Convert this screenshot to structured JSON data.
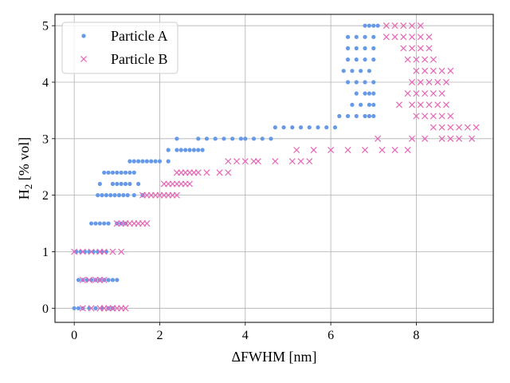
{
  "chart_data": {
    "type": "scatter",
    "xlabel": "ΔFWHM [nm]",
    "ylabel": {
      "main": "H",
      "sub": "2",
      "rest": " [% vol]"
    },
    "xlim": [
      -0.45,
      9.8
    ],
    "ylim": [
      -0.25,
      5.2
    ],
    "xticks": [
      0,
      2,
      4,
      6,
      8
    ],
    "yticks": [
      0,
      1,
      2,
      3,
      4,
      5
    ],
    "grid": true,
    "legend_position": "upper-left",
    "series": [
      {
        "name": "Particle A",
        "marker": "dot",
        "color": "#6699e8",
        "points": [
          [
            0.0,
            0
          ],
          [
            0.1,
            0
          ],
          [
            0.2,
            0
          ],
          [
            0.35,
            0
          ],
          [
            0.5,
            0
          ],
          [
            0.65,
            0
          ],
          [
            0.8,
            0
          ],
          [
            0.9,
            0
          ],
          [
            0.1,
            0.5
          ],
          [
            0.2,
            0.5
          ],
          [
            0.3,
            0.5
          ],
          [
            0.4,
            0.5
          ],
          [
            0.5,
            0.5
          ],
          [
            0.6,
            0.5
          ],
          [
            0.7,
            0.5
          ],
          [
            0.8,
            0.5
          ],
          [
            0.9,
            0.5
          ],
          [
            1.0,
            0.5
          ],
          [
            0.05,
            1
          ],
          [
            0.15,
            1
          ],
          [
            0.25,
            1
          ],
          [
            0.35,
            1
          ],
          [
            0.45,
            1
          ],
          [
            0.55,
            1
          ],
          [
            0.65,
            1
          ],
          [
            0.75,
            1
          ],
          [
            0.4,
            1.5
          ],
          [
            0.5,
            1.5
          ],
          [
            0.6,
            1.5
          ],
          [
            0.7,
            1.5
          ],
          [
            0.8,
            1.5
          ],
          [
            1.0,
            1.5
          ],
          [
            1.1,
            1.5
          ],
          [
            1.2,
            1.5
          ],
          [
            0.55,
            2
          ],
          [
            0.65,
            2
          ],
          [
            0.75,
            2
          ],
          [
            0.85,
            2
          ],
          [
            0.95,
            2
          ],
          [
            1.05,
            2
          ],
          [
            1.15,
            2
          ],
          [
            1.25,
            2
          ],
          [
            1.4,
            2
          ],
          [
            1.6,
            2
          ],
          [
            0.6,
            2.2
          ],
          [
            0.9,
            2.2
          ],
          [
            1.0,
            2.2
          ],
          [
            1.1,
            2.2
          ],
          [
            1.2,
            2.2
          ],
          [
            1.3,
            2.2
          ],
          [
            1.5,
            2.2
          ],
          [
            0.7,
            2.4
          ],
          [
            0.8,
            2.4
          ],
          [
            0.9,
            2.4
          ],
          [
            1.0,
            2.4
          ],
          [
            1.1,
            2.4
          ],
          [
            1.2,
            2.4
          ],
          [
            1.3,
            2.4
          ],
          [
            1.4,
            2.4
          ],
          [
            1.3,
            2.6
          ],
          [
            1.4,
            2.6
          ],
          [
            1.5,
            2.6
          ],
          [
            1.6,
            2.6
          ],
          [
            1.7,
            2.6
          ],
          [
            1.8,
            2.6
          ],
          [
            1.9,
            2.6
          ],
          [
            2.0,
            2.6
          ],
          [
            2.2,
            2.6
          ],
          [
            2.2,
            2.8
          ],
          [
            2.4,
            2.8
          ],
          [
            2.5,
            2.8
          ],
          [
            2.6,
            2.8
          ],
          [
            2.7,
            2.8
          ],
          [
            2.8,
            2.8
          ],
          [
            2.9,
            2.8
          ],
          [
            3.0,
            2.8
          ],
          [
            2.4,
            3
          ],
          [
            2.9,
            3
          ],
          [
            3.1,
            3
          ],
          [
            3.3,
            3
          ],
          [
            3.5,
            3
          ],
          [
            3.7,
            3
          ],
          [
            3.9,
            3
          ],
          [
            4.0,
            3
          ],
          [
            4.2,
            3
          ],
          [
            4.4,
            3
          ],
          [
            4.6,
            3
          ],
          [
            4.7,
            3.2
          ],
          [
            4.9,
            3.2
          ],
          [
            5.1,
            3.2
          ],
          [
            5.3,
            3.2
          ],
          [
            5.5,
            3.2
          ],
          [
            5.7,
            3.2
          ],
          [
            5.9,
            3.2
          ],
          [
            6.1,
            3.2
          ],
          [
            6.2,
            3.4
          ],
          [
            6.4,
            3.4
          ],
          [
            6.6,
            3.4
          ],
          [
            6.8,
            3.4
          ],
          [
            6.9,
            3.4
          ],
          [
            7.0,
            3.4
          ],
          [
            6.5,
            3.6
          ],
          [
            6.7,
            3.6
          ],
          [
            6.9,
            3.6
          ],
          [
            7.0,
            3.6
          ],
          [
            6.6,
            3.8
          ],
          [
            6.8,
            3.8
          ],
          [
            6.9,
            3.8
          ],
          [
            7.0,
            3.8
          ],
          [
            6.4,
            4.0
          ],
          [
            6.6,
            4.0
          ],
          [
            6.8,
            4.0
          ],
          [
            7.0,
            4.0
          ],
          [
            6.3,
            4.2
          ],
          [
            6.5,
            4.2
          ],
          [
            6.7,
            4.2
          ],
          [
            6.9,
            4.2
          ],
          [
            6.4,
            4.4
          ],
          [
            6.6,
            4.4
          ],
          [
            6.8,
            4.4
          ],
          [
            7.0,
            4.4
          ],
          [
            6.4,
            4.6
          ],
          [
            6.6,
            4.6
          ],
          [
            6.8,
            4.6
          ],
          [
            7.0,
            4.6
          ],
          [
            6.4,
            4.8
          ],
          [
            6.6,
            4.8
          ],
          [
            6.8,
            4.8
          ],
          [
            7.0,
            4.8
          ],
          [
            6.8,
            5.0
          ],
          [
            6.9,
            5.0
          ],
          [
            7.0,
            5.0
          ],
          [
            7.1,
            5.0
          ]
        ]
      },
      {
        "name": "Particle B",
        "marker": "x",
        "color": "#e466b5",
        "points": [
          [
            0.2,
            0
          ],
          [
            0.4,
            0
          ],
          [
            0.6,
            0
          ],
          [
            0.7,
            0
          ],
          [
            0.8,
            0
          ],
          [
            0.9,
            0
          ],
          [
            1.0,
            0
          ],
          [
            1.1,
            0
          ],
          [
            1.2,
            0
          ],
          [
            0.2,
            0.5
          ],
          [
            0.35,
            0.5
          ],
          [
            0.5,
            0.5
          ],
          [
            0.6,
            0.5
          ],
          [
            0.7,
            0.5
          ],
          [
            0.0,
            1
          ],
          [
            0.2,
            1
          ],
          [
            0.4,
            1
          ],
          [
            0.6,
            1
          ],
          [
            0.7,
            1
          ],
          [
            0.9,
            1
          ],
          [
            1.1,
            1
          ],
          [
            1.0,
            1.5
          ],
          [
            1.1,
            1.5
          ],
          [
            1.2,
            1.5
          ],
          [
            1.3,
            1.5
          ],
          [
            1.4,
            1.5
          ],
          [
            1.5,
            1.5
          ],
          [
            1.6,
            1.5
          ],
          [
            1.7,
            1.5
          ],
          [
            1.6,
            2
          ],
          [
            1.7,
            2
          ],
          [
            1.8,
            2
          ],
          [
            1.9,
            2
          ],
          [
            2.0,
            2
          ],
          [
            2.1,
            2
          ],
          [
            2.2,
            2
          ],
          [
            2.3,
            2
          ],
          [
            2.4,
            2
          ],
          [
            2.1,
            2.2
          ],
          [
            2.2,
            2.2
          ],
          [
            2.3,
            2.2
          ],
          [
            2.4,
            2.2
          ],
          [
            2.5,
            2.2
          ],
          [
            2.6,
            2.2
          ],
          [
            2.7,
            2.2
          ],
          [
            2.4,
            2.4
          ],
          [
            2.5,
            2.4
          ],
          [
            2.6,
            2.4
          ],
          [
            2.7,
            2.4
          ],
          [
            2.8,
            2.4
          ],
          [
            2.9,
            2.4
          ],
          [
            3.1,
            2.4
          ],
          [
            3.4,
            2.4
          ],
          [
            3.6,
            2.4
          ],
          [
            3.6,
            2.6
          ],
          [
            3.8,
            2.6
          ],
          [
            4.0,
            2.6
          ],
          [
            4.2,
            2.6
          ],
          [
            4.3,
            2.6
          ],
          [
            4.7,
            2.6
          ],
          [
            5.1,
            2.6
          ],
          [
            5.3,
            2.6
          ],
          [
            5.5,
            2.6
          ],
          [
            5.2,
            2.8
          ],
          [
            5.6,
            2.8
          ],
          [
            6.0,
            2.8
          ],
          [
            6.4,
            2.8
          ],
          [
            6.8,
            2.8
          ],
          [
            7.2,
            2.8
          ],
          [
            7.5,
            2.8
          ],
          [
            7.8,
            2.8
          ],
          [
            7.1,
            3.0
          ],
          [
            7.9,
            3.0
          ],
          [
            8.2,
            3.0
          ],
          [
            8.6,
            3.0
          ],
          [
            8.8,
            3.0
          ],
          [
            9.0,
            3.0
          ],
          [
            9.3,
            3.0
          ],
          [
            8.4,
            3.2
          ],
          [
            8.6,
            3.2
          ],
          [
            8.8,
            3.2
          ],
          [
            9.0,
            3.2
          ],
          [
            9.2,
            3.2
          ],
          [
            9.4,
            3.2
          ],
          [
            8.0,
            3.4
          ],
          [
            8.2,
            3.4
          ],
          [
            8.4,
            3.4
          ],
          [
            8.6,
            3.4
          ],
          [
            8.8,
            3.4
          ],
          [
            7.6,
            3.6
          ],
          [
            7.9,
            3.6
          ],
          [
            8.1,
            3.6
          ],
          [
            8.3,
            3.6
          ],
          [
            8.5,
            3.6
          ],
          [
            8.7,
            3.6
          ],
          [
            7.8,
            3.8
          ],
          [
            8.0,
            3.8
          ],
          [
            8.2,
            3.8
          ],
          [
            8.4,
            3.8
          ],
          [
            8.6,
            3.8
          ],
          [
            7.9,
            4.0
          ],
          [
            8.1,
            4.0
          ],
          [
            8.3,
            4.0
          ],
          [
            8.5,
            4.0
          ],
          [
            8.7,
            4.0
          ],
          [
            8.0,
            4.2
          ],
          [
            8.2,
            4.2
          ],
          [
            8.4,
            4.2
          ],
          [
            8.6,
            4.2
          ],
          [
            8.8,
            4.2
          ],
          [
            7.8,
            4.4
          ],
          [
            8.0,
            4.4
          ],
          [
            8.2,
            4.4
          ],
          [
            8.4,
            4.4
          ],
          [
            7.7,
            4.6
          ],
          [
            7.9,
            4.6
          ],
          [
            8.1,
            4.6
          ],
          [
            8.3,
            4.6
          ],
          [
            7.3,
            4.8
          ],
          [
            7.5,
            4.8
          ],
          [
            7.7,
            4.8
          ],
          [
            7.9,
            4.8
          ],
          [
            8.1,
            4.8
          ],
          [
            8.3,
            4.8
          ],
          [
            7.3,
            5.0
          ],
          [
            7.5,
            5.0
          ],
          [
            7.7,
            5.0
          ],
          [
            7.9,
            5.0
          ],
          [
            8.1,
            5.0
          ]
        ]
      }
    ]
  }
}
